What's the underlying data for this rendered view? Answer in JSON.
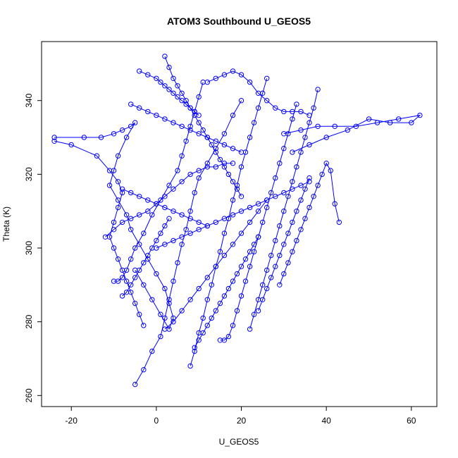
{
  "chart_data": {
    "type": "line",
    "title": "ATOM3 Southbound U_GEOS5",
    "xlabel": "U_GEOS5",
    "ylabel": "Theta (K)",
    "xlim": [
      -27,
      66
    ],
    "ylim": [
      257,
      356
    ],
    "xticks": [
      "-20",
      "0",
      "20",
      "40",
      "60"
    ],
    "xtick_values": [
      -20,
      0,
      20,
      40,
      60
    ],
    "yticks": [
      "260",
      "280",
      "300",
      "320",
      "340"
    ],
    "ytick_values": [
      260,
      280,
      300,
      320,
      340
    ],
    "grid": false,
    "legend": "none",
    "marker": "open-circle",
    "color": "#0000ff",
    "series": [
      {
        "x": [
          -24,
          -17,
          -13,
          -10,
          -8,
          -6,
          -5,
          -7,
          -9,
          -10,
          -11,
          -9,
          -7,
          -6,
          -4,
          -2,
          0,
          2,
          3,
          4,
          3,
          1,
          -1,
          -3,
          -5
        ],
        "y": [
          330,
          330,
          330,
          331,
          332,
          333,
          334,
          330,
          325,
          321,
          317,
          313,
          309,
          305,
          301,
          297,
          293,
          289,
          285,
          281,
          278,
          282,
          286,
          290,
          294
        ]
      },
      {
        "x": [
          -24,
          -20,
          -14,
          -11,
          -9,
          -8,
          -9,
          -10,
          -11,
          -10,
          -9,
          -8,
          -7,
          -6,
          -5,
          -4,
          -3
        ],
        "y": [
          329,
          328,
          325,
          321,
          318,
          315,
          311,
          307,
          303,
          300,
          297,
          294,
          291,
          288,
          285,
          282,
          279
        ]
      },
      {
        "x": [
          -10,
          -9,
          -8,
          -7,
          -6,
          -5,
          -3,
          -1,
          1,
          3,
          5,
          6,
          7,
          8,
          9,
          10,
          11
        ],
        "y": [
          291,
          291,
          292,
          294,
          297,
          300,
          304,
          309,
          313,
          317,
          321,
          325,
          329,
          333,
          337,
          341,
          345
        ]
      },
      {
        "x": [
          -5,
          -3,
          -1,
          1,
          2,
          3,
          4,
          5,
          6,
          7,
          8,
          9,
          10,
          12,
          14,
          16,
          18,
          20
        ],
        "y": [
          263,
          267,
          272,
          276,
          281,
          286,
          291,
          296,
          301,
          305,
          310,
          315,
          319,
          323,
          327,
          331,
          336,
          340
        ]
      },
      {
        "x": [
          8,
          9,
          10,
          11,
          12,
          13,
          14,
          15,
          16,
          17,
          18,
          19,
          20,
          21,
          22,
          23,
          24,
          25,
          26
        ],
        "y": [
          268,
          272,
          277,
          281,
          286,
          290,
          295,
          299,
          304,
          308,
          313,
          317,
          322,
          326,
          330,
          334,
          338,
          342,
          346
        ]
      },
      {
        "x": [
          15,
          16,
          17,
          18,
          19,
          20,
          21,
          22,
          23,
          24,
          25,
          26,
          27,
          28,
          29,
          30,
          31,
          32,
          33
        ],
        "y": [
          275,
          275,
          276,
          279,
          283,
          287,
          291,
          295,
          299,
          303,
          307,
          311,
          315,
          319,
          323,
          327,
          331,
          335,
          339
        ]
      },
      {
        "x": [
          22,
          23,
          24,
          25,
          26,
          27,
          28,
          29,
          30,
          31,
          32,
          33,
          34,
          35,
          36,
          37,
          38
        ],
        "y": [
          278,
          282,
          286,
          290,
          294,
          298,
          302,
          306,
          310,
          314,
          318,
          322,
          326,
          330,
          334,
          338,
          343
        ]
      },
      {
        "x": [
          29,
          30,
          31,
          32,
          33,
          34,
          35,
          36,
          37,
          38,
          39,
          40,
          41,
          42,
          43
        ],
        "y": [
          290,
          293,
          296,
          299,
          302,
          305,
          308,
          311,
          314,
          317,
          320,
          323,
          321,
          312,
          307
        ]
      },
      {
        "x": [
          30,
          34,
          38,
          42,
          47,
          52,
          57,
          62,
          60,
          55,
          50,
          45,
          40,
          36,
          32
        ],
        "y": [
          331,
          332,
          333,
          333,
          333,
          334,
          335,
          336,
          334,
          334,
          335,
          332,
          330,
          328,
          326
        ]
      },
      {
        "x": [
          -12,
          -10,
          -8,
          -6,
          -4,
          -2,
          0,
          2,
          4,
          6,
          8,
          10,
          12,
          14,
          16,
          18
        ],
        "y": [
          303,
          305,
          307,
          308,
          309,
          310,
          312,
          314,
          316,
          318,
          320,
          321,
          322,
          322,
          323,
          323
        ]
      },
      {
        "x": [
          -4,
          -2,
          0,
          1,
          2,
          3,
          4,
          5,
          6,
          7,
          8,
          9,
          10
        ],
        "y": [
          348,
          347,
          346,
          345,
          344,
          343,
          342,
          341,
          340,
          339,
          338,
          337,
          336
        ]
      },
      {
        "x": [
          2,
          3,
          4,
          5,
          6,
          7,
          8,
          9,
          10,
          11,
          12,
          13,
          14,
          15,
          16,
          17,
          18,
          19,
          20
        ],
        "y": [
          352,
          349,
          346,
          344,
          342,
          340,
          338,
          336,
          334,
          332,
          330,
          328,
          326,
          324,
          322,
          320,
          318,
          316,
          314
        ]
      },
      {
        "x": [
          12,
          14,
          16,
          18,
          20,
          22,
          24,
          26,
          28,
          30,
          32,
          34,
          36
        ],
        "y": [
          345,
          346,
          347,
          348,
          347,
          345,
          342,
          340,
          338,
          337,
          337,
          337,
          336
        ]
      },
      {
        "x": [
          -8,
          -7,
          -6,
          -5,
          -4,
          -3,
          -2,
          -1,
          0,
          1,
          2,
          3
        ],
        "y": [
          287,
          288,
          290,
          292,
          294,
          296,
          298,
          300,
          302,
          304,
          306,
          308
        ]
      },
      {
        "x": [
          2,
          4,
          6,
          8,
          10,
          12,
          14,
          16,
          18,
          20,
          22,
          24,
          26
        ],
        "y": [
          278,
          280,
          283,
          286,
          289,
          292,
          295,
          298,
          301,
          304,
          307,
          310,
          313
        ]
      },
      {
        "x": [
          9,
          10,
          11,
          12,
          13,
          14,
          15,
          16,
          17,
          18,
          19,
          20,
          21,
          22,
          23,
          24
        ],
        "y": [
          273,
          275,
          277,
          279,
          281,
          283,
          285,
          287,
          289,
          291,
          293,
          295,
          297,
          299,
          301,
          303
        ]
      },
      {
        "x": [
          24,
          25,
          26,
          27,
          28,
          29,
          30,
          31,
          32,
          33,
          34,
          35,
          36
        ],
        "y": [
          283,
          286,
          289,
          292,
          295,
          298,
          301,
          304,
          307,
          310,
          313,
          316,
          319
        ]
      },
      {
        "x": [
          -6,
          -4,
          -2,
          0,
          2,
          4,
          6,
          8,
          10,
          12,
          14,
          16,
          18,
          20
        ],
        "y": [
          339,
          338,
          337,
          336,
          335,
          334,
          333,
          332,
          331,
          330,
          329,
          328,
          327,
          326
        ]
      },
      {
        "x": [
          -8,
          -6,
          -4,
          -2,
          0,
          2,
          4,
          6,
          8,
          10,
          12
        ],
        "y": [
          316,
          315,
          314,
          313,
          312,
          311,
          310,
          309,
          308,
          307,
          306
        ]
      },
      {
        "x": [
          0,
          2,
          4,
          6,
          8,
          10,
          12,
          14,
          16,
          18,
          20,
          22,
          24,
          26,
          28,
          30,
          32,
          34,
          36
        ],
        "y": [
          300,
          301,
          302,
          303,
          304,
          305,
          306,
          307,
          308,
          309,
          310,
          311,
          312,
          313,
          314,
          315,
          316,
          317,
          318
        ]
      }
    ]
  }
}
